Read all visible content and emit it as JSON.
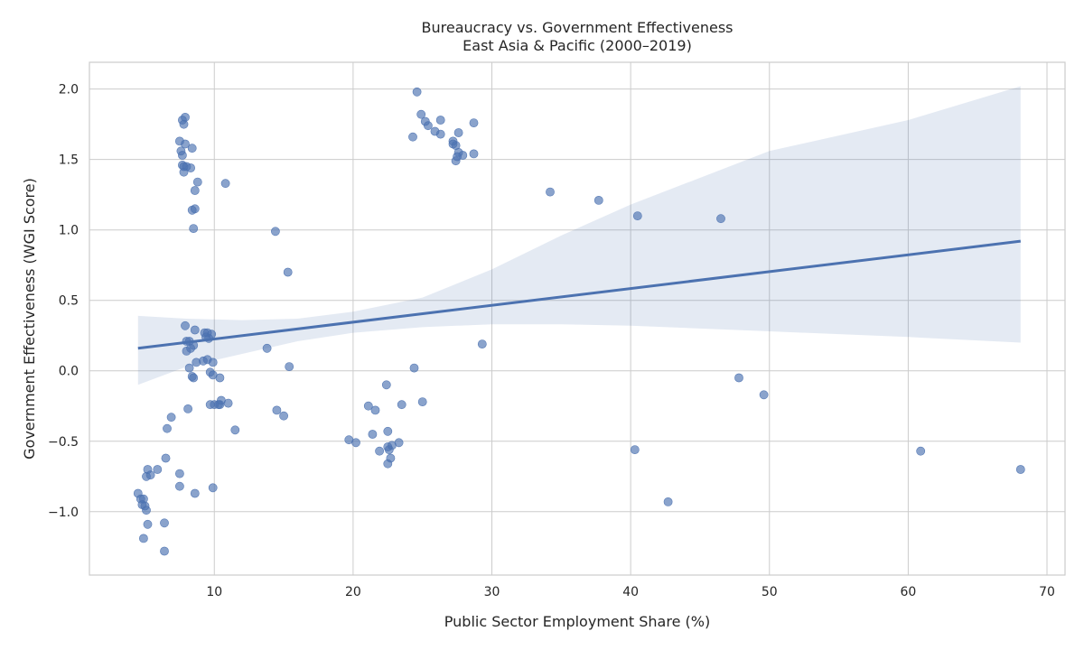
{
  "chart_data": {
    "type": "scatter",
    "title": "Bureaucracy vs. Government Effectiveness",
    "subtitle": "East Asia & Pacific (2000–2019)",
    "xlabel": "Public Sector Employment Share (%)",
    "ylabel": "Government Effectiveness (WGI Score)",
    "xlim": [
      1.0,
      71.3
    ],
    "ylim": [
      -1.45,
      2.19
    ],
    "xticks": [
      10,
      20,
      30,
      40,
      50,
      60,
      70
    ],
    "xtick_labels": [
      "10",
      "20",
      "30",
      "40",
      "50",
      "60",
      "70"
    ],
    "yticks": [
      -1.0,
      -0.5,
      0.0,
      0.5,
      1.0,
      1.5,
      2.0
    ],
    "ytick_labels": [
      "−1.0",
      "−0.5",
      "0.0",
      "0.5",
      "1.0",
      "1.5",
      "2.0"
    ],
    "grid": true,
    "colors": {
      "points": "#4c72b0",
      "line": "#4c72b0",
      "band": "#4c72b0"
    },
    "points": [
      [
        4.5,
        -0.87
      ],
      [
        4.7,
        -0.91
      ],
      [
        4.9,
        -0.91
      ],
      [
        4.8,
        -0.95
      ],
      [
        5.0,
        -0.96
      ],
      [
        5.1,
        -0.99
      ],
      [
        5.2,
        -0.7
      ],
      [
        5.1,
        -0.75
      ],
      [
        5.4,
        -0.74
      ],
      [
        5.2,
        -1.09
      ],
      [
        4.9,
        -1.19
      ],
      [
        5.9,
        -0.7
      ],
      [
        6.4,
        -1.28
      ],
      [
        6.4,
        -1.08
      ],
      [
        6.5,
        -0.62
      ],
      [
        6.6,
        -0.41
      ],
      [
        6.9,
        -0.33
      ],
      [
        7.5,
        -0.73
      ],
      [
        7.5,
        -0.82
      ],
      [
        8.1,
        -0.27
      ],
      [
        8.6,
        -0.87
      ],
      [
        9.9,
        -0.83
      ],
      [
        7.9,
        1.8
      ],
      [
        7.7,
        1.78
      ],
      [
        7.8,
        1.75
      ],
      [
        7.5,
        1.63
      ],
      [
        7.9,
        1.61
      ],
      [
        8.4,
        1.58
      ],
      [
        7.6,
        1.56
      ],
      [
        7.7,
        1.53
      ],
      [
        7.7,
        1.46
      ],
      [
        7.8,
        1.45
      ],
      [
        8.0,
        1.45
      ],
      [
        8.3,
        1.44
      ],
      [
        7.8,
        1.41
      ],
      [
        8.8,
        1.34
      ],
      [
        8.6,
        1.28
      ],
      [
        8.6,
        1.15
      ],
      [
        8.4,
        1.14
      ],
      [
        8.5,
        1.01
      ],
      [
        10.8,
        1.33
      ],
      [
        7.9,
        0.32
      ],
      [
        8.6,
        0.29
      ],
      [
        9.3,
        0.27
      ],
      [
        9.5,
        0.27
      ],
      [
        9.8,
        0.26
      ],
      [
        9.4,
        0.24
      ],
      [
        9.6,
        0.23
      ],
      [
        8.0,
        0.21
      ],
      [
        8.2,
        0.21
      ],
      [
        8.5,
        0.18
      ],
      [
        8.3,
        0.16
      ],
      [
        8.0,
        0.14
      ],
      [
        9.5,
        0.08
      ],
      [
        9.2,
        0.07
      ],
      [
        8.7,
        0.06
      ],
      [
        9.9,
        0.06
      ],
      [
        8.2,
        0.02
      ],
      [
        9.7,
        -0.01
      ],
      [
        9.9,
        -0.03
      ],
      [
        8.4,
        -0.04
      ],
      [
        8.5,
        -0.05
      ],
      [
        10.4,
        -0.05
      ],
      [
        10.5,
        -0.21
      ],
      [
        11.0,
        -0.23
      ],
      [
        9.7,
        -0.24
      ],
      [
        10.0,
        -0.24
      ],
      [
        10.3,
        -0.24
      ],
      [
        10.4,
        -0.24
      ],
      [
        11.5,
        -0.42
      ],
      [
        14.4,
        0.99
      ],
      [
        15.3,
        0.7
      ],
      [
        13.8,
        0.16
      ],
      [
        15.4,
        0.03
      ],
      [
        14.5,
        -0.28
      ],
      [
        15.0,
        -0.32
      ],
      [
        24.6,
        1.98
      ],
      [
        24.9,
        1.82
      ],
      [
        25.2,
        1.77
      ],
      [
        26.3,
        1.78
      ],
      [
        28.7,
        1.76
      ],
      [
        25.4,
        1.74
      ],
      [
        25.9,
        1.7
      ],
      [
        26.3,
        1.68
      ],
      [
        27.6,
        1.69
      ],
      [
        24.3,
        1.66
      ],
      [
        27.2,
        1.63
      ],
      [
        27.2,
        1.61
      ],
      [
        27.4,
        1.6
      ],
      [
        27.6,
        1.55
      ],
      [
        27.9,
        1.53
      ],
      [
        28.7,
        1.54
      ],
      [
        27.5,
        1.52
      ],
      [
        27.4,
        1.49
      ],
      [
        24.4,
        0.02
      ],
      [
        22.4,
        -0.1
      ],
      [
        25.0,
        -0.22
      ],
      [
        21.1,
        -0.25
      ],
      [
        23.5,
        -0.24
      ],
      [
        21.6,
        -0.28
      ],
      [
        22.5,
        -0.43
      ],
      [
        21.4,
        -0.45
      ],
      [
        19.7,
        -0.49
      ],
      [
        20.2,
        -0.51
      ],
      [
        23.3,
        -0.51
      ],
      [
        22.8,
        -0.53
      ],
      [
        22.5,
        -0.54
      ],
      [
        22.6,
        -0.56
      ],
      [
        21.9,
        -0.57
      ],
      [
        22.7,
        -0.62
      ],
      [
        22.5,
        -0.66
      ],
      [
        29.3,
        0.19
      ],
      [
        34.2,
        1.27
      ],
      [
        37.7,
        1.21
      ],
      [
        40.5,
        1.1
      ],
      [
        46.5,
        1.08
      ],
      [
        47.8,
        -0.05
      ],
      [
        49.6,
        -0.17
      ],
      [
        40.3,
        -0.56
      ],
      [
        42.7,
        -0.93
      ],
      [
        60.9,
        -0.57
      ],
      [
        68.1,
        -0.7
      ]
    ],
    "regression": {
      "x": [
        4.5,
        68.1
      ],
      "y": [
        0.16,
        0.92
      ],
      "ci_x": [
        4.5,
        8,
        12,
        16,
        20,
        25,
        30,
        35,
        40,
        50,
        60,
        68.1
      ],
      "ci_upper": [
        0.39,
        0.37,
        0.36,
        0.37,
        0.42,
        0.52,
        0.72,
        0.96,
        1.18,
        1.56,
        1.78,
        2.02
      ],
      "ci_lower": [
        -0.1,
        0.03,
        0.12,
        0.21,
        0.27,
        0.31,
        0.33,
        0.33,
        0.32,
        0.28,
        0.24,
        0.2
      ]
    }
  }
}
